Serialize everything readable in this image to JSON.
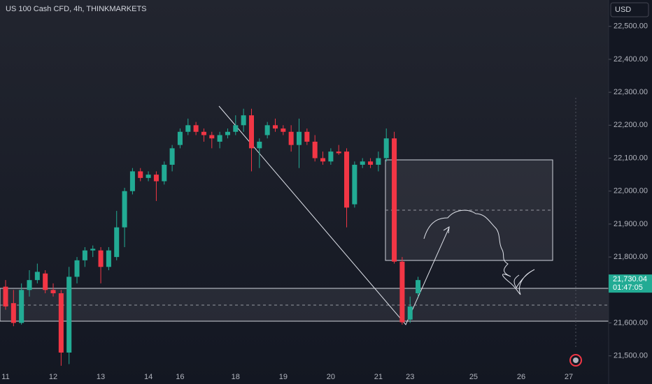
{
  "chart_data": {
    "type": "candlestick",
    "title": "US 100 Cash CFD, 4h, THINKMARKETS",
    "currency": "USD",
    "categories": [
      "11",
      null,
      null,
      null,
      null,
      null,
      "12",
      null,
      null,
      null,
      null,
      null,
      "13",
      null,
      null,
      null,
      null,
      null,
      "14",
      null,
      null,
      null,
      "16",
      null,
      null,
      null,
      null,
      null,
      null,
      "18",
      null,
      null,
      null,
      null,
      null,
      "19",
      null,
      null,
      null,
      null,
      null,
      "20",
      null,
      null,
      null,
      null,
      null,
      "21",
      null,
      null,
      null,
      "23",
      null,
      null,
      null,
      null,
      null,
      null,
      null,
      "25",
      null,
      null,
      null,
      null,
      null,
      "26",
      null,
      null,
      null,
      null,
      null,
      "27"
    ],
    "open": [
      21710,
      21660,
      21600,
      21700,
      21730,
      21750,
      21700,
      21690,
      21510,
      21740,
      21790,
      21820,
      21820,
      21770,
      21800,
      21890,
      22000,
      22060,
      22040,
      22050,
      22030,
      22080,
      22140,
      22180,
      22200,
      22180,
      22170,
      22150,
      22170,
      22180,
      22200,
      22230,
      22130,
      22170,
      22200,
      22190,
      22180,
      22140,
      22180,
      22150,
      22100,
      22090,
      22120,
      22120,
      21960,
      22080,
      22090,
      22080,
      22100,
      22160,
      21786,
      21610,
      21690,
      null,
      null,
      null,
      null,
      null,
      null,
      null,
      null,
      null,
      null,
      null,
      null,
      null,
      null,
      null,
      null,
      null,
      null,
      null
    ],
    "high": [
      21730,
      21700,
      21720,
      21760,
      21780,
      21760,
      21720,
      21700,
      21770,
      21800,
      21830,
      21835,
      21830,
      21830,
      21940,
      22010,
      22070,
      22070,
      22060,
      22060,
      22090,
      22140,
      22190,
      22220,
      22210,
      22190,
      22180,
      22180,
      22190,
      22230,
      22250,
      22250,
      22160,
      22210,
      22220,
      22200,
      22200,
      22220,
      22190,
      22170,
      22120,
      22130,
      22140,
      22130,
      22090,
      22100,
      22100,
      22120,
      22190,
      22180,
      21800,
      21680,
      21740,
      null,
      null,
      null,
      null,
      null,
      null,
      null,
      null,
      null,
      null,
      null,
      null,
      null,
      null,
      null,
      null,
      null,
      null,
      null
    ],
    "low": [
      21640,
      21590,
      21595,
      21680,
      21720,
      21690,
      21680,
      21470,
      21475,
      21720,
      21770,
      21800,
      21720,
      21760,
      21790,
      21830,
      21990,
      22030,
      22030,
      21970,
      22020,
      22060,
      22130,
      22170,
      22170,
      22150,
      22130,
      22130,
      22160,
      22170,
      22180,
      22060,
      22070,
      22160,
      22180,
      22170,
      22120,
      22070,
      22140,
      22090,
      22080,
      22080,
      22110,
      21890,
      21950,
      22070,
      22070,
      22060,
      22090,
      21780,
      21595,
      21600,
      21680,
      null,
      null,
      null,
      null,
      null,
      null,
      null,
      null,
      null,
      null,
      null,
      null,
      null,
      null,
      null,
      null,
      null,
      null,
      null
    ],
    "close": [
      21650,
      21600,
      21700,
      21730,
      21755,
      21700,
      21690,
      21510,
      21740,
      21790,
      21820,
      21825,
      21770,
      21820,
      21890,
      22000,
      22060,
      22040,
      22050,
      22030,
      22080,
      22130,
      22180,
      22200,
      22180,
      22170,
      22160,
      22170,
      22180,
      22200,
      22230,
      22130,
      22150,
      22200,
      22190,
      22180,
      22140,
      22180,
      22150,
      22100,
      22090,
      22120,
      22115,
      21950,
      22080,
      22090,
      22080,
      22100,
      22160,
      21786,
      21602,
      21650,
      21730.04,
      null,
      null,
      null,
      null,
      null,
      null,
      null,
      null,
      null,
      null,
      null,
      null,
      null,
      null,
      null,
      null,
      null,
      null,
      null
    ],
    "up_color": "#22ab94",
    "down_color": "#f23645",
    "ylim": [
      21457,
      22580
    ],
    "yticks": [
      {
        "value": 21500,
        "label": "21,500.00"
      },
      {
        "value": 21600,
        "label": "21,600.00"
      },
      {
        "value": 21800,
        "label": "21,800.00"
      },
      {
        "value": 21900,
        "label": "21,900.00"
      },
      {
        "value": 22000,
        "label": "22,000.00"
      },
      {
        "value": 22100,
        "label": "22,100.00"
      },
      {
        "value": 22200,
        "label": "22,200.00"
      },
      {
        "value": 22300,
        "label": "22,300.00"
      },
      {
        "value": 22400,
        "label": "22,400.00"
      },
      {
        "value": 22500,
        "label": "22,500.00"
      }
    ],
    "last_price_label": "21,730.04",
    "countdown": "01:47:05"
  }
}
